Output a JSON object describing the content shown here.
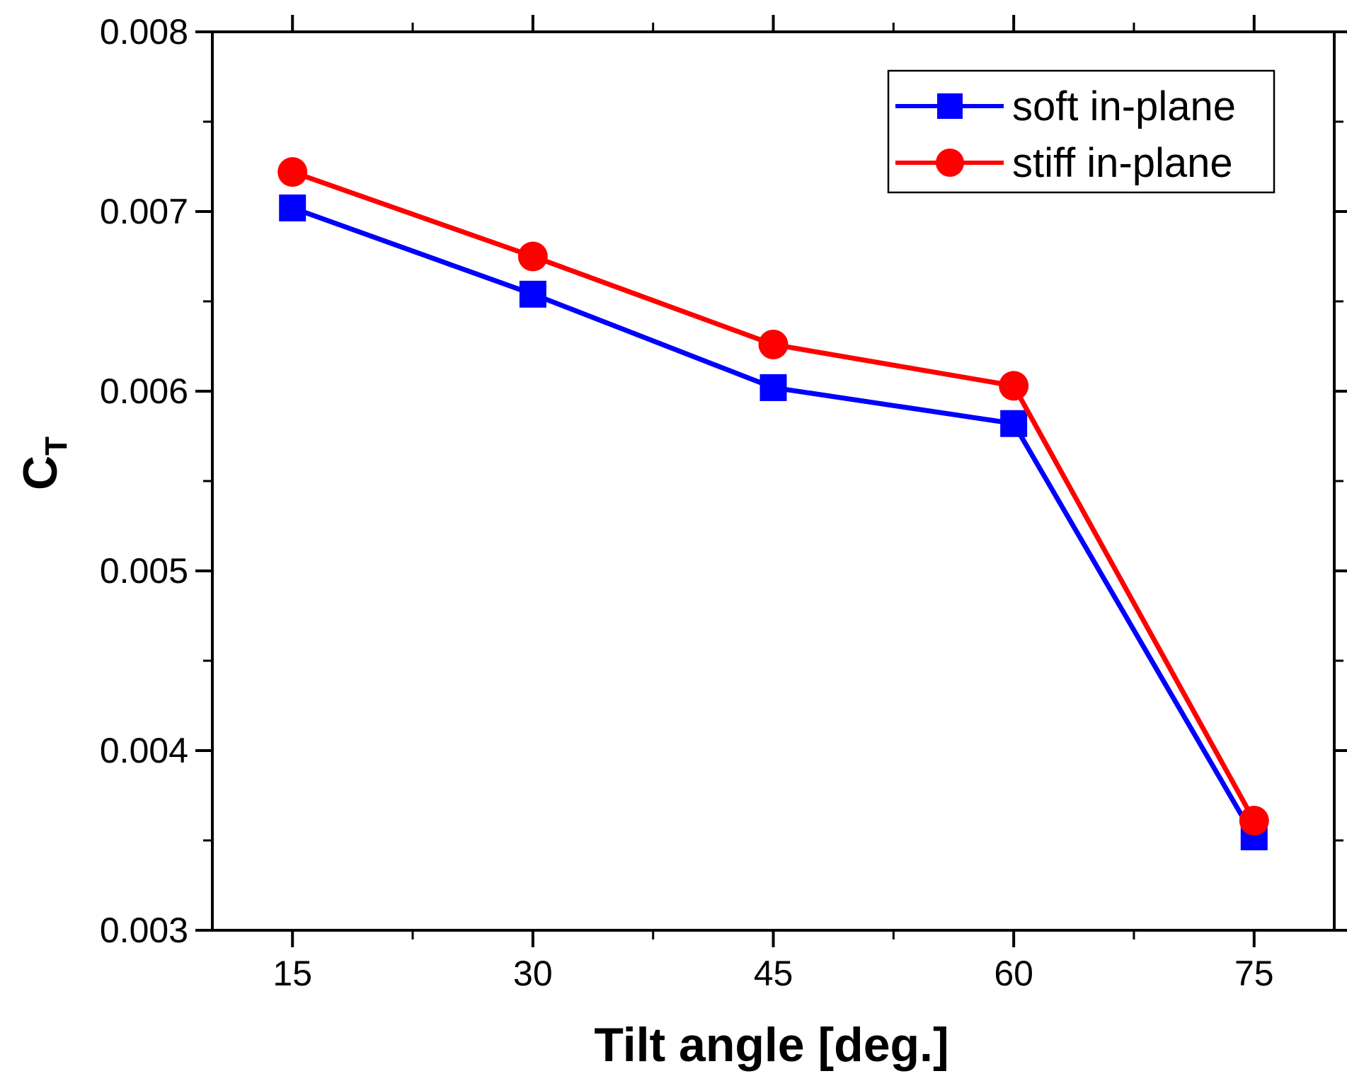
{
  "chart_data": {
    "type": "line",
    "xlabel": "Tilt angle [deg.]",
    "ylabel": "C",
    "ylabel_subscript": "T",
    "x": [
      15,
      30,
      45,
      60,
      75
    ],
    "x_tick_labels": [
      "15",
      "30",
      "45",
      "60",
      "75"
    ],
    "xlim": [
      10,
      80
    ],
    "ylim": [
      0.003,
      0.008
    ],
    "y_ticks": [
      0.003,
      0.004,
      0.005,
      0.006,
      0.007,
      0.008
    ],
    "y_tick_labels": [
      "0.003",
      "0.004",
      "0.005",
      "0.006",
      "0.007",
      "0.008"
    ],
    "grid": false,
    "legend_position": "top-right",
    "series": [
      {
        "name": "soft in-plane",
        "color": "#0000ff",
        "marker": "square",
        "values": [
          0.00702,
          0.00654,
          0.00602,
          0.00582,
          0.00352
        ]
      },
      {
        "name": "stiff in-plane",
        "color": "#ff0000",
        "marker": "circle",
        "values": [
          0.00722,
          0.00675,
          0.00626,
          0.00603,
          0.00361
        ]
      }
    ]
  }
}
